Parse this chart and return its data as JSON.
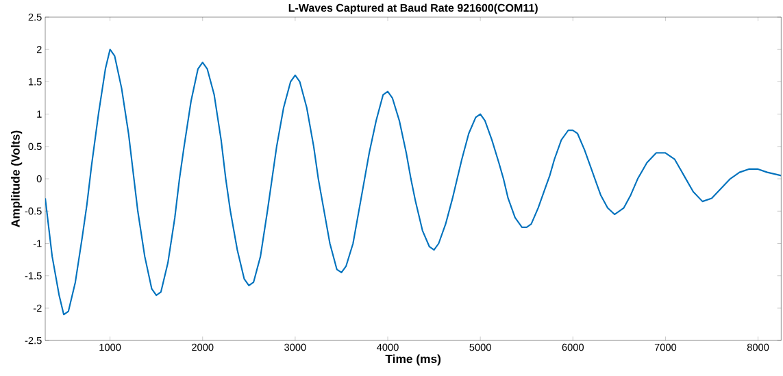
{
  "chart_data": {
    "type": "line",
    "title": "L-Waves Captured at Baud Rate 921600(COM11)",
    "xlabel": "Time (ms)",
    "ylabel": "Amplitude (Volts)",
    "x": [
      300,
      375,
      450,
      500,
      550,
      625,
      700,
      750,
      800,
      875,
      950,
      1000,
      1050,
      1125,
      1200,
      1250,
      1300,
      1375,
      1450,
      1500,
      1550,
      1625,
      1700,
      1750,
      1800,
      1875,
      1950,
      2000,
      2050,
      2125,
      2200,
      2250,
      2300,
      2375,
      2450,
      2500,
      2550,
      2625,
      2700,
      2750,
      2800,
      2875,
      2950,
      3000,
      3050,
      3125,
      3200,
      3250,
      3300,
      3375,
      3450,
      3500,
      3550,
      3625,
      3700,
      3750,
      3800,
      3875,
      3950,
      4000,
      4050,
      4125,
      4200,
      4250,
      4300,
      4375,
      4450,
      4500,
      4550,
      4625,
      4700,
      4750,
      4800,
      4875,
      4950,
      5000,
      5050,
      5125,
      5200,
      5250,
      5300,
      5375,
      5450,
      5500,
      5550,
      5625,
      5700,
      5750,
      5800,
      5875,
      5950,
      6000,
      6050,
      6125,
      6200,
      6250,
      6300,
      6375,
      6450,
      6500,
      6550,
      6625,
      6700,
      6800,
      6900,
      7000,
      7100,
      7200,
      7300,
      7400,
      7500,
      7600,
      7700,
      7800,
      7900,
      8000,
      8100,
      8250
    ],
    "series": [
      {
        "color": "#0072bd",
        "values": [
          -0.3,
          -1.2,
          -1.8,
          -2.1,
          -2.05,
          -1.6,
          -0.9,
          -0.4,
          0.2,
          1.0,
          1.7,
          2.0,
          1.9,
          1.4,
          0.7,
          0.1,
          -0.5,
          -1.2,
          -1.7,
          -1.8,
          -1.75,
          -1.3,
          -0.6,
          0.0,
          0.5,
          1.2,
          1.7,
          1.8,
          1.7,
          1.3,
          0.6,
          0.0,
          -0.5,
          -1.1,
          -1.55,
          -1.65,
          -1.6,
          -1.2,
          -0.5,
          0.0,
          0.5,
          1.1,
          1.5,
          1.6,
          1.5,
          1.1,
          0.5,
          0.0,
          -0.4,
          -1.0,
          -1.4,
          -1.45,
          -1.35,
          -1.0,
          -0.4,
          0.0,
          0.4,
          0.9,
          1.3,
          1.35,
          1.25,
          0.9,
          0.4,
          0.0,
          -0.35,
          -0.8,
          -1.05,
          -1.1,
          -1.0,
          -0.7,
          -0.3,
          0.0,
          0.3,
          0.7,
          0.95,
          1.0,
          0.9,
          0.6,
          0.25,
          0.0,
          -0.3,
          -0.6,
          -0.75,
          -0.75,
          -0.7,
          -0.45,
          -0.15,
          0.05,
          0.3,
          0.6,
          0.75,
          0.75,
          0.7,
          0.45,
          0.15,
          -0.05,
          -0.25,
          -0.45,
          -0.55,
          -0.5,
          -0.45,
          -0.25,
          0.0,
          0.25,
          0.4,
          0.4,
          0.3,
          0.05,
          -0.2,
          -0.35,
          -0.3,
          -0.15,
          0.0,
          0.1,
          0.15,
          0.15,
          0.1,
          0.05
        ]
      }
    ],
    "xlim": [
      300,
      8250
    ],
    "ylim": [
      -2.5,
      2.5
    ],
    "xticks": [
      1000,
      2000,
      3000,
      4000,
      5000,
      6000,
      7000,
      8000
    ],
    "yticks": [
      -2.5,
      -2,
      -1.5,
      -1,
      -0.5,
      0,
      0.5,
      1,
      1.5,
      2,
      2.5
    ],
    "grid": false,
    "marker": "none",
    "line_style": "solid"
  }
}
